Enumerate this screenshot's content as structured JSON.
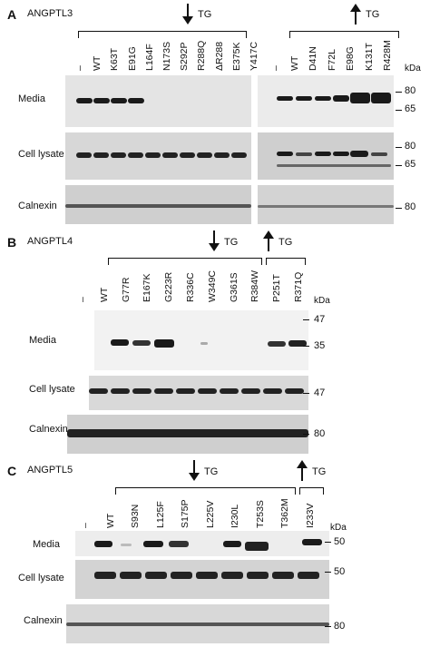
{
  "panelA": {
    "letter": "A",
    "title": "ANGPTL3",
    "left_lanes": [
      "–",
      "WT",
      "K63T",
      "E91G",
      "L164F",
      "N173S",
      "S292P",
      "R288Q",
      "ΔR288",
      "E375K",
      "Y417C"
    ],
    "right_lanes": [
      "–",
      "WT",
      "D41N",
      "F72L",
      "E98G",
      "K131T",
      "R428M"
    ],
    "down_tg": "TG",
    "up_tg": "TG",
    "kda": "kDa",
    "rows": [
      "Media",
      "Cell lysate",
      "Calnexin"
    ],
    "mw_media": [
      "80",
      "65"
    ],
    "mw_lysate": [
      "80",
      "65"
    ],
    "mw_calnexin": [
      "80"
    ]
  },
  "panelB": {
    "letter": "B",
    "title": "ANGPTL4",
    "lanes": [
      "–",
      "WT",
      "G77R",
      "E167K",
      "G223R",
      "R336C",
      "W349C",
      "G361S",
      "R384W",
      "P251T",
      "R371Q"
    ],
    "down_tg": "TG",
    "up_tg": "TG",
    "kda": "kDa",
    "rows": [
      "Media",
      "Cell lysate",
      "Calnexin"
    ],
    "mw_media": [
      "47",
      "35"
    ],
    "mw_lysate": [
      "47"
    ],
    "mw_calnexin": [
      "80"
    ]
  },
  "panelC": {
    "letter": "C",
    "title": "ANGPTL5",
    "lanes": [
      "–",
      "WT",
      "S93N",
      "L125F",
      "S175P",
      "L225V",
      "I230L",
      "T253S",
      "T362M",
      "I233V"
    ],
    "down_tg": "TG",
    "up_tg": "TG",
    "kda": "kDa",
    "rows": [
      "Media",
      "Cell lysate",
      "Calnexin"
    ],
    "mw_media": [
      "50"
    ],
    "mw_lysate": [
      "50"
    ],
    "mw_calnexin": [
      "80"
    ]
  }
}
